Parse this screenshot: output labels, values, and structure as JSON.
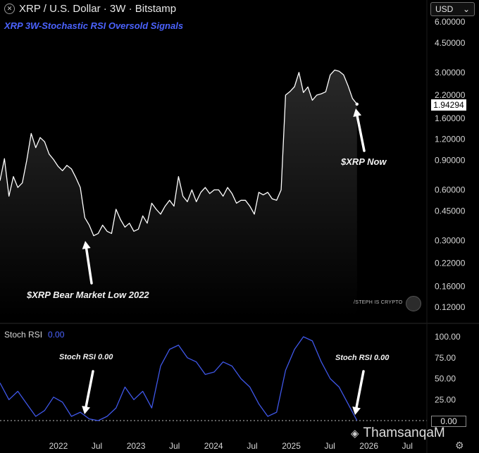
{
  "header": {
    "logo": "XRP-logo-icon",
    "title": "XRP / U.S. Dollar · 3W · Bitstamp",
    "subtitle": "XRP 3W-Stochastic RSI Oversold Signals"
  },
  "currency_select": {
    "value": "USD"
  },
  "stoch": {
    "label": "Stoch RSI",
    "value": "0.00"
  },
  "price_tag": "1.94294",
  "zero_tag": "0.00",
  "annotations": {
    "xrp_now": "$XRP Now",
    "bear_low": "$XRP Bear Market Low 2022",
    "stoch_left": "Stoch RSI 0.00",
    "stoch_right": "Stoch RSI 0.00"
  },
  "watermarks": {
    "small": "/STEPH IS CRYPTO",
    "large": "ThamsanqaM"
  },
  "colors": {
    "price_line": "#ffffff",
    "stoch_line": "#3f57e8",
    "accent": "#4b63ff",
    "background": "#000000"
  },
  "chart_data": [
    {
      "type": "line",
      "scale": "log",
      "ylim": [
        0.105,
        6.3
      ],
      "xlim": [
        "2021-04-01",
        "2026-10-01"
      ],
      "y_ticks": [
        "6.00000",
        "4.50000",
        "3.00000",
        "2.20000",
        "1.60000",
        "1.20000",
        "0.90000",
        "0.60000",
        "0.45000",
        "0.30000",
        "0.22000",
        "0.16000",
        "0.12000"
      ],
      "x_ticks": [
        "2022",
        "Jul",
        "2023",
        "Jul",
        "2024",
        "Jul",
        "2025",
        "Jul",
        "2026",
        "Jul"
      ],
      "x": [
        "2021-04-01",
        "2021-04-22",
        "2021-05-13",
        "2021-06-03",
        "2021-06-24",
        "2021-07-15",
        "2021-08-05",
        "2021-08-26",
        "2021-09-16",
        "2021-10-07",
        "2021-10-28",
        "2021-11-18",
        "2021-12-09",
        "2021-12-30",
        "2022-01-20",
        "2022-02-10",
        "2022-03-03",
        "2022-03-24",
        "2022-04-14",
        "2022-05-05",
        "2022-05-26",
        "2022-06-16",
        "2022-07-07",
        "2022-07-28",
        "2022-08-18",
        "2022-09-08",
        "2022-09-29",
        "2022-10-20",
        "2022-11-10",
        "2022-12-01",
        "2022-12-22",
        "2023-01-12",
        "2023-02-02",
        "2023-02-23",
        "2023-03-16",
        "2023-04-06",
        "2023-04-27",
        "2023-05-18",
        "2023-06-08",
        "2023-06-29",
        "2023-07-20",
        "2023-08-10",
        "2023-08-31",
        "2023-09-21",
        "2023-10-12",
        "2023-11-02",
        "2023-11-23",
        "2023-12-14",
        "2024-01-04",
        "2024-01-25",
        "2024-02-15",
        "2024-03-07",
        "2024-03-28",
        "2024-04-18",
        "2024-05-09",
        "2024-05-30",
        "2024-06-20",
        "2024-07-11",
        "2024-08-01",
        "2024-08-22",
        "2024-09-12",
        "2024-10-03",
        "2024-10-24",
        "2024-11-14",
        "2024-12-05",
        "2024-12-26",
        "2025-01-16",
        "2025-02-06",
        "2025-02-27",
        "2025-03-20",
        "2025-04-10",
        "2025-05-01",
        "2025-05-22",
        "2025-06-12",
        "2025-07-03",
        "2025-07-24",
        "2025-08-14",
        "2025-09-04",
        "2025-09-25",
        "2025-10-16",
        "2025-11-06"
      ],
      "price": [
        0.68,
        0.92,
        0.55,
        0.72,
        0.62,
        0.66,
        0.9,
        1.3,
        1.07,
        1.23,
        1.16,
        0.98,
        0.91,
        0.83,
        0.78,
        0.84,
        0.8,
        0.71,
        0.62,
        0.41,
        0.37,
        0.32,
        0.33,
        0.37,
        0.34,
        0.33,
        0.46,
        0.4,
        0.36,
        0.38,
        0.34,
        0.35,
        0.42,
        0.38,
        0.5,
        0.46,
        0.43,
        0.48,
        0.52,
        0.48,
        0.72,
        0.55,
        0.51,
        0.6,
        0.51,
        0.58,
        0.62,
        0.57,
        0.6,
        0.6,
        0.55,
        0.62,
        0.57,
        0.5,
        0.52,
        0.52,
        0.48,
        0.43,
        0.58,
        0.56,
        0.58,
        0.53,
        0.52,
        0.6,
        2.2,
        2.31,
        2.47,
        3.0,
        2.28,
        2.46,
        2.05,
        2.2,
        2.24,
        2.3,
        2.9,
        3.1,
        3.05,
        2.9,
        2.5,
        2.1,
        1.94294
      ]
    },
    {
      "type": "line",
      "ylim": [
        0,
        100
      ],
      "y_ticks": [
        "100.00",
        "75.00",
        "50.00",
        "25.00"
      ],
      "x": [
        "2021-04-01",
        "2021-05-13",
        "2021-06-24",
        "2021-08-05",
        "2021-09-16",
        "2021-10-28",
        "2021-12-09",
        "2022-01-20",
        "2022-03-03",
        "2022-04-14",
        "2022-05-26",
        "2022-07-07",
        "2022-08-18",
        "2022-09-29",
        "2022-11-10",
        "2022-12-22",
        "2023-02-02",
        "2023-03-16",
        "2023-04-27",
        "2023-06-08",
        "2023-07-20",
        "2023-08-31",
        "2023-10-12",
        "2023-11-23",
        "2024-01-04",
        "2024-02-15",
        "2024-03-28",
        "2024-05-09",
        "2024-06-20",
        "2024-08-01",
        "2024-09-12",
        "2024-10-24",
        "2024-12-05",
        "2025-01-16",
        "2025-02-27",
        "2025-04-10",
        "2025-05-22",
        "2025-07-03",
        "2025-08-14",
        "2025-09-25",
        "2025-11-06"
      ],
      "stoch_rsi": [
        45,
        25,
        35,
        20,
        5,
        12,
        28,
        22,
        5,
        10,
        2,
        0,
        5,
        15,
        40,
        25,
        35,
        15,
        65,
        85,
        90,
        75,
        70,
        55,
        58,
        70,
        65,
        50,
        40,
        20,
        5,
        10,
        60,
        85,
        100,
        95,
        70,
        50,
        40,
        20,
        0
      ]
    }
  ]
}
